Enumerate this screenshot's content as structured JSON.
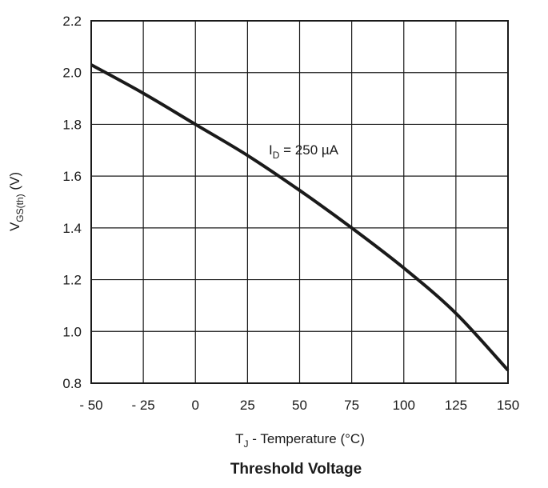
{
  "chart_data": {
    "type": "line",
    "title": "Threshold Voltage",
    "xlabel": {
      "main": "T",
      "sub": "J",
      "rest": " - Temperature (°C)"
    },
    "ylabel": {
      "main": "V",
      "sub": "GS(th)",
      "rest": " (V)"
    },
    "xlim": [
      -50,
      150
    ],
    "ylim": [
      0.8,
      2.2
    ],
    "xticks": [
      -50,
      -25,
      0,
      25,
      50,
      75,
      100,
      125,
      150
    ],
    "xtick_labels": [
      "- 50",
      "- 25",
      "0",
      "25",
      "50",
      "75",
      "100",
      "125",
      "150"
    ],
    "yticks": [
      0.8,
      1.0,
      1.2,
      1.4,
      1.6,
      1.8,
      2.0,
      2.2
    ],
    "ytick_labels": [
      "0.8",
      "1.0",
      "1.2",
      "1.4",
      "1.6",
      "1.8",
      "2.0",
      "2.2"
    ],
    "grid": true,
    "series": [
      {
        "name": "ID = 250 µA",
        "x": [
          -50,
          -25,
          0,
          25,
          50,
          75,
          100,
          125,
          150
        ],
        "y": [
          2.03,
          1.92,
          1.8,
          1.68,
          1.545,
          1.4,
          1.245,
          1.07,
          0.85
        ]
      }
    ],
    "annotation": {
      "main": "I",
      "sub": "D",
      "rest": " = 250 µA",
      "at_x": 35,
      "at_y": 1.69
    },
    "colors": {
      "line": "#1a1a1a",
      "grid": "#1a1a1a",
      "plot_bg": "#ffffff"
    }
  }
}
